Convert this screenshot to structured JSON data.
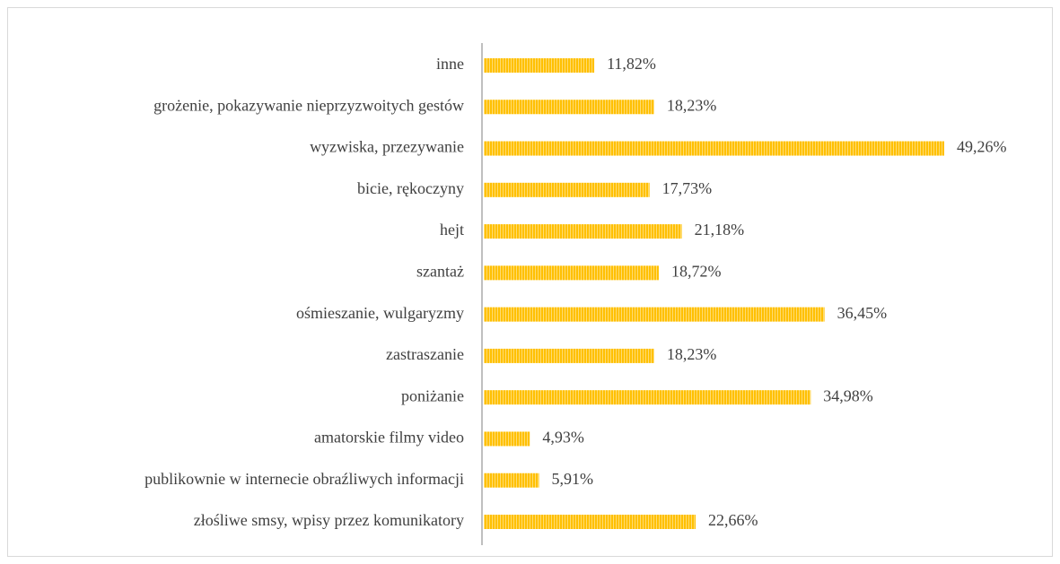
{
  "chart_data": {
    "type": "hbar",
    "categories": [
      "inne",
      "grożenie, pokazywanie nieprzyzwoitych gestów",
      "wyzwiska, przezywanie",
      "bicie, rękoczyny",
      "hejt",
      "szantaż",
      "ośmieszanie, wulgaryzmy",
      "zastraszanie",
      "poniżanie",
      "amatorskie filmy video",
      "publikownie w internecie obraźliwych informacji",
      "złośliwe smsy, wpisy przez komunikatory"
    ],
    "values": [
      11.82,
      18.23,
      49.26,
      17.73,
      21.18,
      18.72,
      36.45,
      18.23,
      34.98,
      4.93,
      5.91,
      22.66
    ],
    "value_labels": [
      "11,82%",
      "18,23%",
      "49,26%",
      "17,73%",
      "21,18%",
      "18,72%",
      "36,45%",
      "18,23%",
      "34,98%",
      "4,93%",
      "5,91%",
      "22,66%"
    ],
    "color": "#ffc000"
  }
}
